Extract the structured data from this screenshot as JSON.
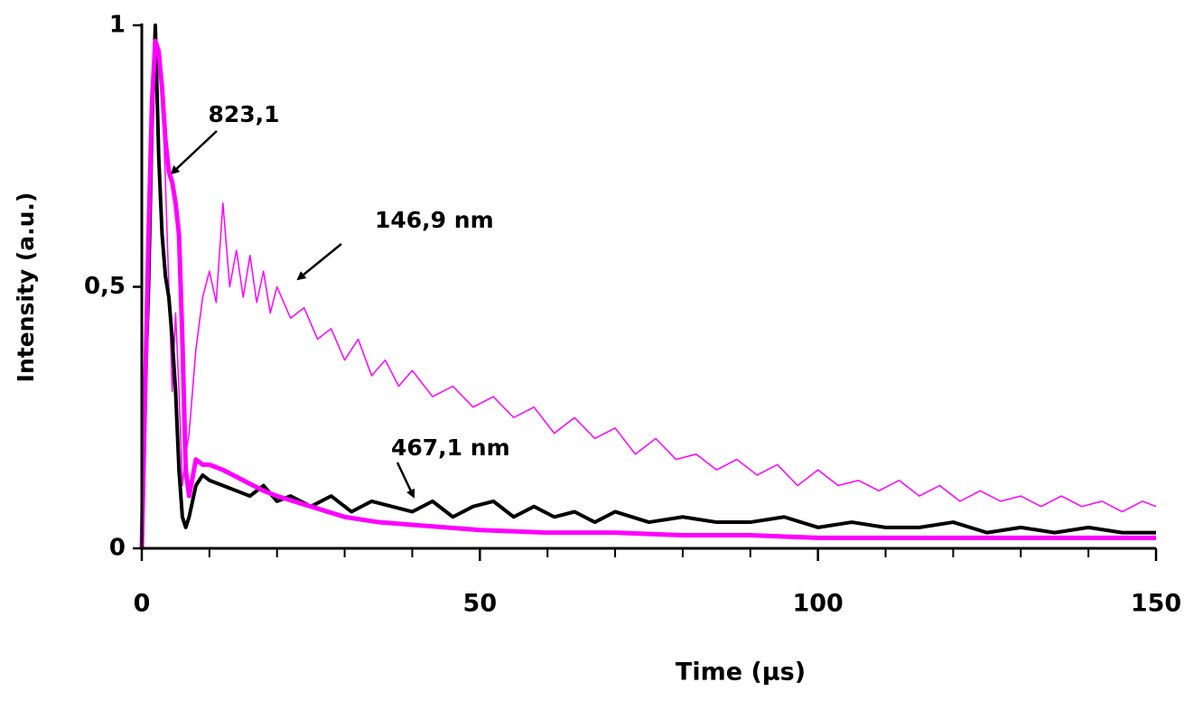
{
  "chart_data": {
    "type": "line",
    "xlabel": "Time (µs)",
    "ylabel": "Intensity (a.u.)",
    "xlim": [
      0,
      150
    ],
    "xticks": [
      0,
      50,
      100,
      150
    ],
    "xminor_ticks": [
      10,
      20,
      30,
      40,
      60,
      70,
      80,
      90,
      110,
      120,
      130,
      140
    ],
    "ylim": [
      0,
      1
    ],
    "yticks": [
      0,
      {
        "value": 0.5,
        "label": "0,5"
      },
      1
    ],
    "series": [
      {
        "name": "146,9 nm",
        "color": "#ff00ff",
        "line_width": 1.5,
        "x": [
          0,
          0.5,
          1,
          1.5,
          2,
          2.5,
          3,
          3.5,
          4,
          4.5,
          5,
          5.5,
          6,
          6.5,
          7,
          7.5,
          8,
          9,
          10,
          11,
          12,
          13,
          14,
          15,
          16,
          17,
          18,
          19,
          20,
          22,
          24,
          26,
          28,
          30,
          32,
          34,
          36,
          38,
          40,
          43,
          46,
          49,
          52,
          55,
          58,
          61,
          64,
          67,
          70,
          73,
          76,
          79,
          82,
          85,
          88,
          91,
          94,
          97,
          100,
          103,
          106,
          109,
          112,
          115,
          118,
          121,
          124,
          127,
          130,
          133,
          136,
          139,
          142,
          145,
          148,
          150
        ],
        "values": [
          0,
          0.35,
          0.6,
          0.9,
          0.97,
          0.95,
          0.88,
          0.7,
          0.5,
          0.3,
          0.45,
          0.3,
          0.12,
          0.18,
          0.22,
          0.3,
          0.38,
          0.48,
          0.53,
          0.47,
          0.66,
          0.5,
          0.57,
          0.48,
          0.56,
          0.47,
          0.53,
          0.45,
          0.5,
          0.44,
          0.46,
          0.4,
          0.42,
          0.36,
          0.4,
          0.33,
          0.36,
          0.31,
          0.34,
          0.29,
          0.31,
          0.27,
          0.29,
          0.25,
          0.27,
          0.22,
          0.25,
          0.21,
          0.23,
          0.18,
          0.21,
          0.17,
          0.18,
          0.15,
          0.17,
          0.14,
          0.16,
          0.12,
          0.15,
          0.12,
          0.13,
          0.11,
          0.13,
          0.1,
          0.12,
          0.09,
          0.11,
          0.09,
          0.1,
          0.08,
          0.1,
          0.08,
          0.09,
          0.07,
          0.09,
          0.08
        ]
      },
      {
        "name": "467,1 nm",
        "color": "#000000",
        "line_width": 4,
        "x": [
          0,
          0.5,
          1,
          1.5,
          2,
          2.5,
          3,
          3.5,
          4,
          4.5,
          5,
          5.5,
          6,
          6.5,
          7,
          8,
          9,
          10,
          12,
          14,
          16,
          18,
          20,
          22,
          25,
          28,
          31,
          34,
          37,
          40,
          43,
          46,
          49,
          52,
          55,
          58,
          61,
          64,
          67,
          70,
          75,
          80,
          85,
          90,
          95,
          100,
          105,
          110,
          115,
          120,
          125,
          130,
          135,
          140,
          145,
          150
        ],
        "values": [
          0,
          0.3,
          0.5,
          0.8,
          1,
          0.75,
          0.6,
          0.52,
          0.48,
          0.4,
          0.3,
          0.15,
          0.06,
          0.04,
          0.06,
          0.12,
          0.14,
          0.13,
          0.12,
          0.11,
          0.1,
          0.12,
          0.09,
          0.1,
          0.08,
          0.1,
          0.07,
          0.09,
          0.08,
          0.07,
          0.09,
          0.06,
          0.08,
          0.09,
          0.06,
          0.08,
          0.06,
          0.07,
          0.05,
          0.07,
          0.05,
          0.06,
          0.05,
          0.05,
          0.06,
          0.04,
          0.05,
          0.04,
          0.04,
          0.05,
          0.03,
          0.04,
          0.03,
          0.04,
          0.03,
          0.03
        ]
      },
      {
        "name": "823,1",
        "color": "#ff00ff",
        "line_width": 5,
        "x": [
          0,
          0.5,
          1,
          1.5,
          2,
          2.5,
          3,
          3.5,
          4,
          4.5,
          5,
          5.5,
          6,
          6.5,
          7,
          8,
          9,
          10,
          12,
          15,
          18,
          20,
          25,
          30,
          35,
          40,
          50,
          60,
          70,
          80,
          90,
          100,
          110,
          120,
          130,
          140,
          150
        ],
        "values": [
          0,
          0.3,
          0.6,
          0.85,
          0.97,
          0.95,
          0.88,
          0.78,
          0.72,
          0.7,
          0.66,
          0.6,
          0.4,
          0.15,
          0.1,
          0.17,
          0.16,
          0.16,
          0.15,
          0.13,
          0.11,
          0.1,
          0.08,
          0.06,
          0.05,
          0.045,
          0.035,
          0.03,
          0.03,
          0.025,
          0.025,
          0.02,
          0.02,
          0.02,
          0.02,
          0.02,
          0.02
        ]
      }
    ]
  }
}
